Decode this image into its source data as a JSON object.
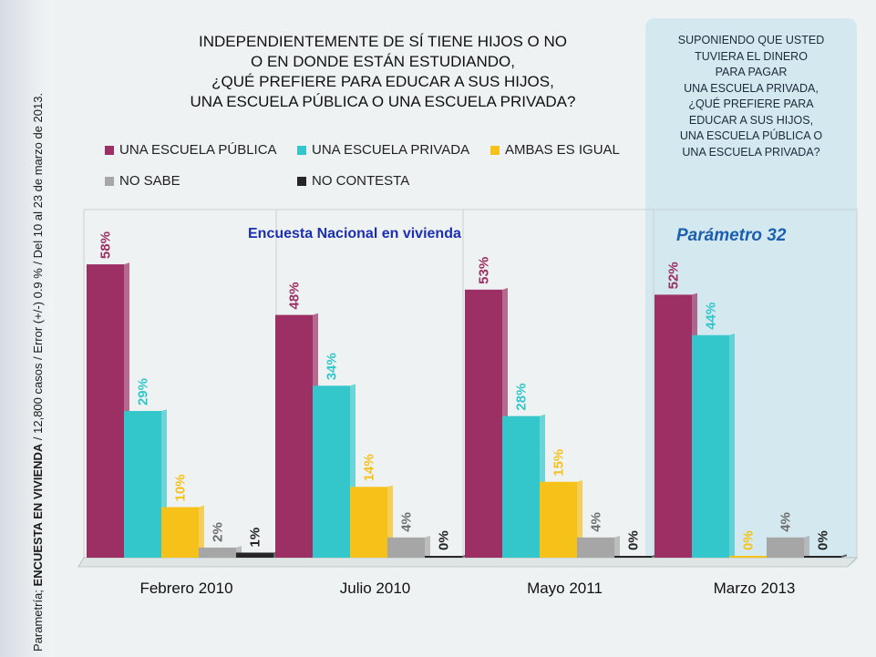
{
  "side_note": {
    "prefix": "Parametría; ",
    "bold": "ENCUESTA EN VIVIENDA",
    "suffix": " / 12,800 casos / Error (+/-) 0.9 % / Del 10 al 23 de marzo de 2013."
  },
  "title_lines": [
    "INDEPENDIENTEMENTE DE SÍ TIENE HIJOS O NO",
    "O EN DONDE ESTÁN ESTUDIANDO,",
    "¿QUÉ PREFIERE PARA EDUCAR A SUS HIJOS,",
    "UNA ESCUELA PÚBLICA O UNA ESCUELA PRIVADA?"
  ],
  "right_question_lines": [
    "SUPONIENDO QUE USTED",
    "TUVIERA EL DINERO",
    "PARA PAGAR",
    "UNA ESCUELA PRIVADA,",
    "¿QUÉ PREFIERE PARA",
    "EDUCAR A SUS HIJOS,",
    "UNA ESCUELA PÚBLICA O",
    "UNA ESCUELA PRIVADA?"
  ],
  "survey_label": "Encuesta Nacional en vivienda",
  "param_label": "Parámetro 32",
  "colors": {
    "publica": "#9c2f63",
    "privada": "#33c7cc",
    "ambas": "#f6c21a",
    "no_sabe": "#a6a6a6",
    "no_contesta": "#262626"
  },
  "chart_data": {
    "type": "bar",
    "categories": [
      "Febrero 2010",
      "Julio 2010",
      "Mayo 2011",
      "Marzo 2013"
    ],
    "ylim": [
      0,
      60
    ],
    "series": [
      {
        "name": "UNA ESCUELA PÚBLICA",
        "key": "publica",
        "values": [
          58,
          48,
          53,
          52
        ],
        "labels": [
          "58%",
          "48%",
          "53%",
          "52%"
        ]
      },
      {
        "name": "UNA ESCUELA PRIVADA",
        "key": "privada",
        "values": [
          29,
          34,
          28,
          44
        ],
        "labels": [
          "29%",
          "34%",
          "28%",
          "44%"
        ]
      },
      {
        "name": "AMBAS ES IGUAL",
        "key": "ambas",
        "values": [
          10,
          14,
          15,
          0
        ],
        "labels": [
          "10%",
          "14%",
          "15%",
          "0%"
        ]
      },
      {
        "name": "NO SABE",
        "key": "no_sabe",
        "values": [
          2,
          4,
          4,
          4
        ],
        "labels": [
          "2%",
          "4%",
          "4%",
          "4%"
        ]
      },
      {
        "name": "NO CONTESTA",
        "key": "no_contesta",
        "values": [
          1,
          0,
          0,
          0
        ],
        "labels": [
          "1%",
          "0%",
          "0%",
          "0%"
        ]
      }
    ]
  }
}
